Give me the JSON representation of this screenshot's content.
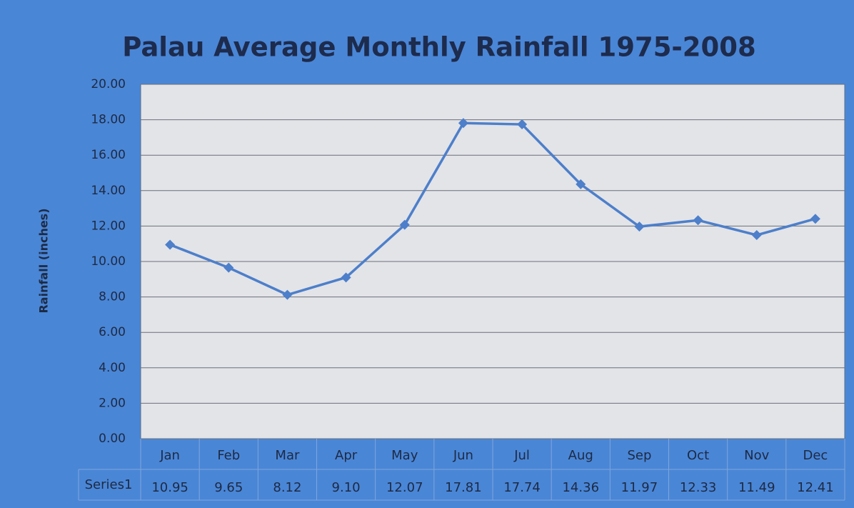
{
  "chart_data": {
    "type": "line",
    "title": "Palau Average Monthly Rainfall 1975-2008",
    "y_label": "Rainfall (inches)",
    "categories": [
      "Jan",
      "Feb",
      "Mar",
      "Apr",
      "May",
      "Jun",
      "Jul",
      "Aug",
      "Sep",
      "Oct",
      "Nov",
      "Dec"
    ],
    "series": [
      {
        "name": "Series1",
        "color": "#4d7fca",
        "values": [
          10.95,
          9.65,
          8.12,
          9.1,
          12.07,
          17.81,
          17.74,
          14.36,
          11.97,
          12.33,
          11.49,
          12.41
        ],
        "value_labels": [
          "10.95",
          "9.65",
          "8.12",
          "9.10",
          "12.07",
          "17.81",
          "17.74",
          "14.36",
          "11.97",
          "12.33",
          "11.49",
          "12.41"
        ]
      }
    ],
    "ylim": [
      0,
      20
    ],
    "yticks": [
      {
        "value": 0,
        "label": "0.00"
      },
      {
        "value": 2,
        "label": "2.00"
      },
      {
        "value": 4,
        "label": "4.00"
      },
      {
        "value": 6,
        "label": "6.00"
      },
      {
        "value": 8,
        "label": "8.00"
      },
      {
        "value": 10,
        "label": "10.00"
      },
      {
        "value": 12,
        "label": "12.00"
      },
      {
        "value": 14,
        "label": "14.00"
      },
      {
        "value": 16,
        "label": "16.00"
      },
      {
        "value": 18,
        "label": "18.00"
      },
      {
        "value": 20,
        "label": "20.00"
      }
    ],
    "grid": true
  }
}
